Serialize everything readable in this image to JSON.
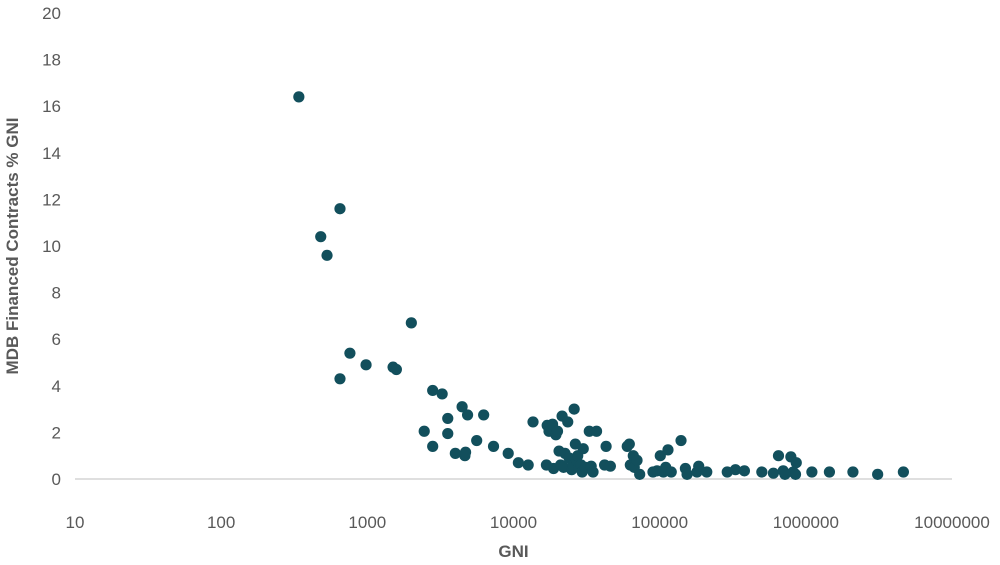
{
  "chart_data": {
    "type": "scatter",
    "title": "",
    "xlabel": "GNI",
    "ylabel": "MDB  Financed Contracts % GNI",
    "x_scale": "log",
    "xlim": [
      10,
      10000000
    ],
    "ylim": [
      0,
      20
    ],
    "x_ticks": [
      "10",
      "100",
      "1000",
      "10000",
      "100000",
      "1000000",
      "10000000"
    ],
    "y_ticks": [
      "0",
      "2",
      "4",
      "6",
      "8",
      "10",
      "12",
      "14",
      "16",
      "18",
      "20"
    ],
    "grid": false,
    "legend": "none",
    "point_color": "#124f5c",
    "series": [
      {
        "points": [
          [
            340,
            16.4
          ],
          [
            480,
            10.4
          ],
          [
            530,
            9.6
          ],
          [
            650,
            11.6
          ],
          [
            650,
            4.3
          ],
          [
            760,
            5.4
          ],
          [
            980,
            4.9
          ],
          [
            1500,
            4.8
          ],
          [
            1580,
            4.7
          ],
          [
            2000,
            6.7
          ],
          [
            2450,
            2.05
          ],
          [
            2800,
            3.8
          ],
          [
            2800,
            1.4
          ],
          [
            3250,
            3.65
          ],
          [
            3550,
            2.6
          ],
          [
            3550,
            1.95
          ],
          [
            4000,
            1.1
          ],
          [
            4450,
            3.1
          ],
          [
            4650,
            1.0
          ],
          [
            4700,
            1.15
          ],
          [
            4850,
            2.75
          ],
          [
            5600,
            1.65
          ],
          [
            6250,
            2.75
          ],
          [
            7300,
            1.4
          ],
          [
            9200,
            1.1
          ],
          [
            10800,
            0.7
          ],
          [
            12600,
            0.6
          ],
          [
            13600,
            2.45
          ],
          [
            16800,
            0.6
          ],
          [
            17000,
            2.3
          ],
          [
            17500,
            2.05
          ],
          [
            18500,
            2.35
          ],
          [
            18800,
            0.45
          ],
          [
            19500,
            1.9
          ],
          [
            20000,
            2.05
          ],
          [
            20500,
            1.2
          ],
          [
            21000,
            0.6
          ],
          [
            21500,
            2.7
          ],
          [
            22000,
            0.5
          ],
          [
            22500,
            1.1
          ],
          [
            23500,
            2.45
          ],
          [
            24000,
            0.9
          ],
          [
            25000,
            0.4
          ],
          [
            25500,
            0.6
          ],
          [
            26000,
            3.0
          ],
          [
            26500,
            1.5
          ],
          [
            27000,
            0.8
          ],
          [
            27500,
            1.0
          ],
          [
            28000,
            0.5
          ],
          [
            29000,
            0.6
          ],
          [
            29500,
            0.3
          ],
          [
            30000,
            1.3
          ],
          [
            31000,
            0.5
          ],
          [
            33000,
            2.05
          ],
          [
            34000,
            0.55
          ],
          [
            35000,
            0.3
          ],
          [
            37000,
            2.05
          ],
          [
            42000,
            0.6
          ],
          [
            43000,
            1.4
          ],
          [
            46000,
            0.55
          ],
          [
            60000,
            1.4
          ],
          [
            62000,
            1.5
          ],
          [
            63000,
            0.6
          ],
          [
            66000,
            1.0
          ],
          [
            67000,
            0.5
          ],
          [
            70000,
            0.8
          ],
          [
            73000,
            0.2
          ],
          [
            90000,
            0.3
          ],
          [
            96000,
            0.35
          ],
          [
            101000,
            1.0
          ],
          [
            106000,
            0.3
          ],
          [
            110000,
            0.5
          ],
          [
            114000,
            1.25
          ],
          [
            120000,
            0.3
          ],
          [
            140000,
            1.65
          ],
          [
            150000,
            0.45
          ],
          [
            154000,
            0.2
          ],
          [
            180000,
            0.3
          ],
          [
            185000,
            0.55
          ],
          [
            210000,
            0.3
          ],
          [
            290000,
            0.3
          ],
          [
            330000,
            0.4
          ],
          [
            380000,
            0.35
          ],
          [
            500000,
            0.3
          ],
          [
            600000,
            0.25
          ],
          [
            650000,
            1.0
          ],
          [
            700000,
            0.35
          ],
          [
            720000,
            0.2
          ],
          [
            790000,
            0.95
          ],
          [
            820000,
            0.3
          ],
          [
            850000,
            0.2
          ],
          [
            860000,
            0.7
          ],
          [
            1100000,
            0.3
          ],
          [
            1450000,
            0.3
          ],
          [
            2100000,
            0.3
          ],
          [
            3100000,
            0.2
          ],
          [
            4650000,
            0.3
          ]
        ]
      }
    ]
  }
}
